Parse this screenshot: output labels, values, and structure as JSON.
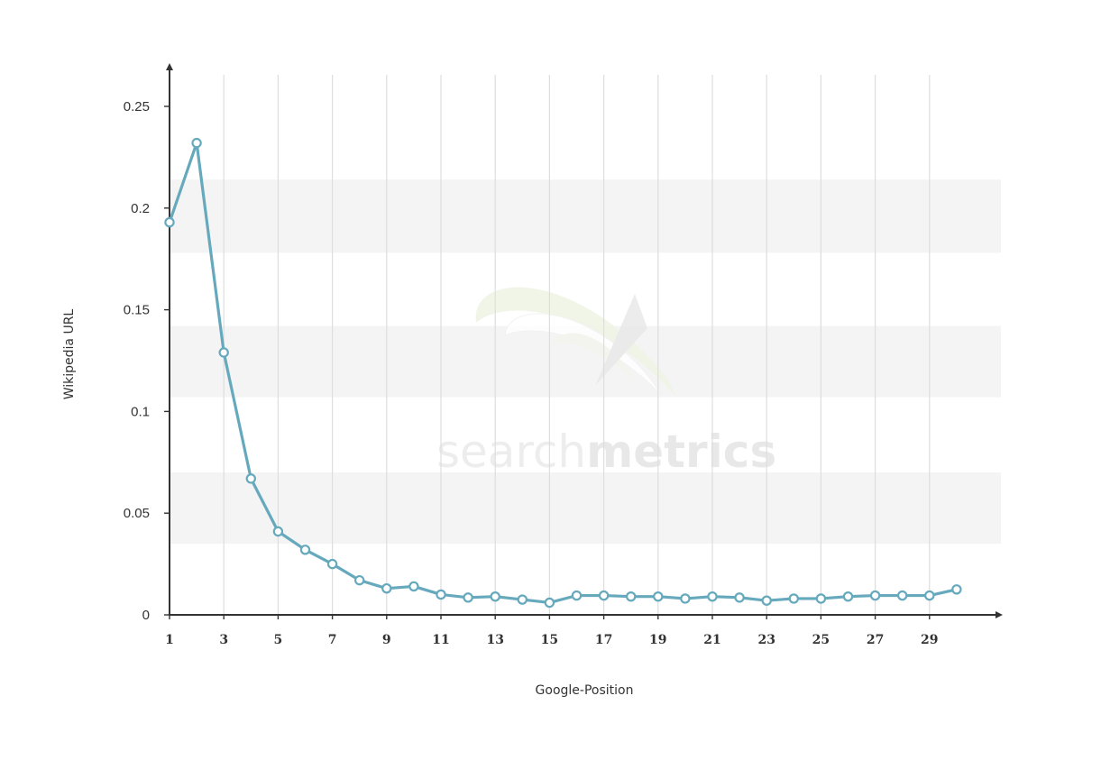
{
  "chart_data": {
    "type": "line",
    "xlabel": "Google-Position",
    "ylabel": "Wikipedia URL",
    "xlim": [
      1,
      31.5
    ],
    "ylim": [
      0,
      0.25
    ],
    "x_ticks": [
      "1",
      "3",
      "5",
      "7",
      "9",
      "11",
      "13",
      "15",
      "17",
      "19",
      "21",
      "23",
      "25",
      "27",
      "29"
    ],
    "y_ticks": [
      "0",
      "0.05",
      "0.1",
      "0.15",
      "0.2",
      "0.25"
    ],
    "grid": true,
    "series": [
      {
        "x": [
          1,
          2,
          3,
          4,
          5,
          6,
          7,
          8,
          9,
          10,
          11,
          12,
          13,
          14,
          15,
          16,
          17,
          18,
          19,
          20,
          21,
          22,
          23,
          24,
          25,
          26,
          27,
          28,
          29,
          30
        ],
        "values": [
          0.193,
          0.232,
          0.129,
          0.067,
          0.041,
          0.032,
          0.025,
          0.017,
          0.013,
          0.014,
          0.01,
          0.0085,
          0.009,
          0.0075,
          0.006,
          0.0095,
          0.0095,
          0.009,
          0.009,
          0.008,
          0.009,
          0.0085,
          0.007,
          0.008,
          0.008,
          0.009,
          0.0095,
          0.0095,
          0.0095,
          0.0125
        ],
        "color": "#66a9bd"
      }
    ]
  },
  "watermark": {
    "light_text": "search",
    "bold_text": "metrics"
  },
  "colors": {
    "line": "#66a9bd",
    "band": "#f4f4f4",
    "gridline": "#dedede",
    "axis": "#333333"
  }
}
